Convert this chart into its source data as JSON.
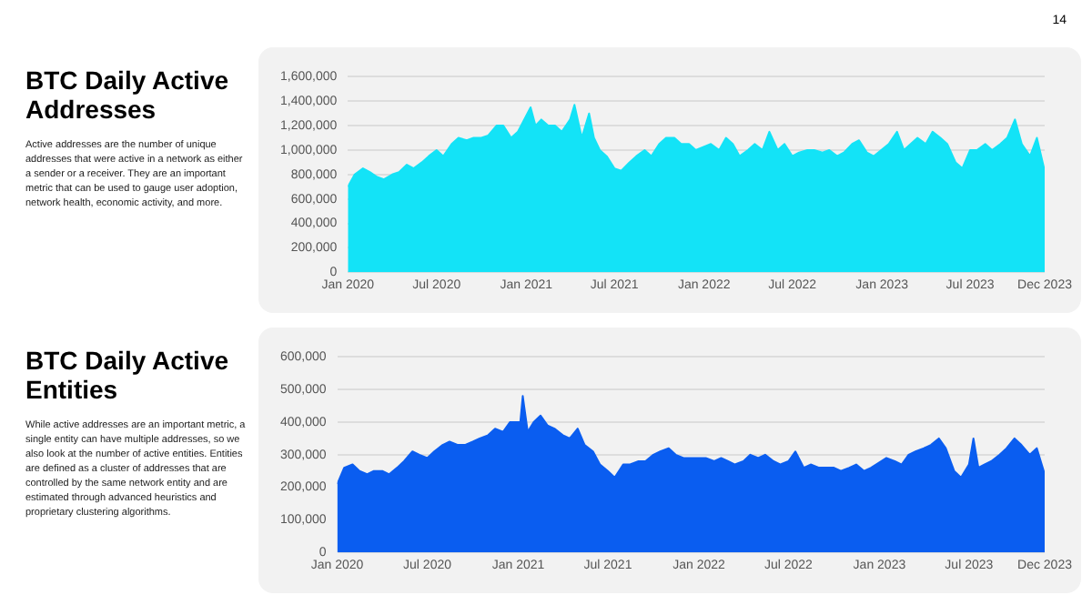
{
  "chart_data": [
    {
      "type": "area",
      "title": "BTC Daily Active Addresses",
      "subtitle": "Active addresses are the number of unique addresses that were active in a network as either a sender or a receiver. They are an important metric that can be used to gauge user adoption, network health, economic activity, and more.",
      "annotations": [
        "14"
      ],
      "color": "#13e3f7",
      "grid": "y",
      "x": [
        "2020-01-01",
        "2020-01-15",
        "2020-02-01",
        "2020-02-15",
        "2020-03-01",
        "2020-03-15",
        "2020-04-01",
        "2020-04-15",
        "2020-05-01",
        "2020-05-15",
        "2020-06-01",
        "2020-06-15",
        "2020-07-01",
        "2020-07-15",
        "2020-08-01",
        "2020-08-15",
        "2020-09-01",
        "2020-09-15",
        "2020-10-01",
        "2020-10-15",
        "2020-11-01",
        "2020-11-15",
        "2020-12-01",
        "2020-12-15",
        "2021-01-10",
        "2021-01-20",
        "2021-02-01",
        "2021-02-15",
        "2021-03-01",
        "2021-03-15",
        "2021-04-01",
        "2021-04-10",
        "2021-04-25",
        "2021-05-10",
        "2021-05-20",
        "2021-06-01",
        "2021-06-15",
        "2021-07-01",
        "2021-07-15",
        "2021-08-01",
        "2021-08-15",
        "2021-09-01",
        "2021-09-15",
        "2021-10-01",
        "2021-10-15",
        "2021-11-01",
        "2021-11-15",
        "2021-12-01",
        "2021-12-15",
        "2022-01-15",
        "2022-02-01",
        "2022-02-15",
        "2022-03-01",
        "2022-03-15",
        "2022-04-01",
        "2022-04-15",
        "2022-05-01",
        "2022-05-15",
        "2022-06-01",
        "2022-06-15",
        "2022-07-01",
        "2022-07-15",
        "2022-08-01",
        "2022-08-15",
        "2022-09-01",
        "2022-09-15",
        "2022-10-01",
        "2022-10-15",
        "2022-11-01",
        "2022-11-15",
        "2022-12-01",
        "2022-12-15",
        "2023-01-15",
        "2023-02-01",
        "2023-02-15",
        "2023-03-01",
        "2023-03-15",
        "2023-04-01",
        "2023-04-15",
        "2023-05-01",
        "2023-05-15",
        "2023-06-01",
        "2023-06-15",
        "2023-07-01",
        "2023-07-15",
        "2023-08-01",
        "2023-08-15",
        "2023-09-01",
        "2023-09-15",
        "2023-10-01",
        "2023-10-15",
        "2023-11-01",
        "2023-11-15",
        "2023-12-01"
      ],
      "values": [
        700000,
        800000,
        850000,
        820000,
        780000,
        760000,
        800000,
        820000,
        880000,
        850000,
        900000,
        950000,
        1000000,
        950000,
        1050000,
        1100000,
        1080000,
        1100000,
        1100000,
        1120000,
        1200000,
        1200000,
        1100000,
        1150000,
        1350000,
        1200000,
        1250000,
        1200000,
        1200000,
        1150000,
        1250000,
        1370000,
        1100000,
        1300000,
        1100000,
        1000000,
        950000,
        850000,
        830000,
        900000,
        950000,
        1000000,
        950000,
        1050000,
        1100000,
        1100000,
        1050000,
        1050000,
        1000000,
        1050000,
        1000000,
        1100000,
        1050000,
        950000,
        1000000,
        1050000,
        1000000,
        1150000,
        1000000,
        1050000,
        950000,
        980000,
        1000000,
        1000000,
        980000,
        1000000,
        950000,
        980000,
        1050000,
        1080000,
        980000,
        950000,
        1050000,
        1150000,
        1000000,
        1050000,
        1100000,
        1050000,
        1150000,
        1100000,
        1050000,
        900000,
        850000,
        1000000,
        1000000,
        1050000,
        1000000,
        1050000,
        1100000,
        1250000,
        1050000,
        950000,
        1100000,
        830000
      ],
      "xlim": [
        "2020-01-01",
        "2023-12-01"
      ],
      "xticks": [
        {
          "value": "2020-01",
          "label": "Jan 2020"
        },
        {
          "value": "2020-07",
          "label": "Jul 2020"
        },
        {
          "value": "2021-01",
          "label": "Jan 2021"
        },
        {
          "value": "2021-07",
          "label": "Jul 2021"
        },
        {
          "value": "2022-01",
          "label": "Jan 2022"
        },
        {
          "value": "2022-07",
          "label": "Jul 2022"
        },
        {
          "value": "2023-01",
          "label": "Jan 2023"
        },
        {
          "value": "2023-07",
          "label": "Jul 2023"
        },
        {
          "value": "2023-12",
          "label": "Dec 2023"
        }
      ],
      "ylim": [
        0,
        1600000
      ],
      "yticks": [
        0,
        {
          "value": 200000,
          "label": "200,000"
        },
        {
          "value": 400000,
          "label": "400,000"
        },
        {
          "value": 600000,
          "label": "600,000"
        },
        {
          "value": 800000,
          "label": "800,000"
        },
        {
          "value": 1000000,
          "label": "1,000,000"
        },
        {
          "value": 1200000,
          "label": "1,200,000"
        },
        {
          "value": 1400000,
          "label": "1,400,000"
        },
        {
          "value": 1600000,
          "label": "1,600,000"
        }
      ]
    },
    {
      "type": "area",
      "title": "BTC Daily Active Entities",
      "subtitle": "While active addresses are an important metric, a single entity can have multiple addresses, so we also look at the number of active entities. Entities are defined as a cluster of addresses that are controlled by the same network entity and are estimated through advanced heuristics and proprietary clustering algorithms.",
      "color": "#0a5df0",
      "grid": "y",
      "x": [
        "2020-01-01",
        "2020-01-15",
        "2020-02-01",
        "2020-02-15",
        "2020-03-01",
        "2020-03-15",
        "2020-04-01",
        "2020-04-15",
        "2020-05-01",
        "2020-05-15",
        "2020-06-01",
        "2020-06-15",
        "2020-07-01",
        "2020-07-15",
        "2020-08-01",
        "2020-08-15",
        "2020-09-01",
        "2020-09-15",
        "2020-10-01",
        "2020-10-15",
        "2020-11-01",
        "2020-11-15",
        "2020-12-01",
        "2020-12-15",
        "2021-01-05",
        "2021-01-10",
        "2021-01-20",
        "2021-02-01",
        "2021-02-15",
        "2021-03-01",
        "2021-03-15",
        "2021-04-01",
        "2021-04-15",
        "2021-05-01",
        "2021-05-15",
        "2021-06-01",
        "2021-06-15",
        "2021-07-01",
        "2021-07-15",
        "2021-08-01",
        "2021-08-15",
        "2021-09-01",
        "2021-09-15",
        "2021-10-01",
        "2021-10-15",
        "2021-11-01",
        "2021-11-15",
        "2021-12-01",
        "2021-12-15",
        "2022-01-15",
        "2022-02-01",
        "2022-02-15",
        "2022-03-01",
        "2022-03-15",
        "2022-04-01",
        "2022-04-15",
        "2022-05-01",
        "2022-05-15",
        "2022-06-01",
        "2022-06-15",
        "2022-07-01",
        "2022-07-15",
        "2022-08-01",
        "2022-08-15",
        "2022-09-01",
        "2022-09-15",
        "2022-10-01",
        "2022-10-15",
        "2022-11-01",
        "2022-11-15",
        "2022-12-01",
        "2022-12-15",
        "2023-01-15",
        "2023-02-01",
        "2023-02-15",
        "2023-03-01",
        "2023-03-15",
        "2023-04-01",
        "2023-04-15",
        "2023-05-01",
        "2023-05-15",
        "2023-06-01",
        "2023-06-15",
        "2023-07-01",
        "2023-07-10",
        "2023-07-20",
        "2023-08-01",
        "2023-08-15",
        "2023-09-01",
        "2023-09-15",
        "2023-10-01",
        "2023-10-15",
        "2023-11-01",
        "2023-11-15",
        "2023-12-01"
      ],
      "values": [
        210000,
        260000,
        270000,
        250000,
        240000,
        250000,
        250000,
        240000,
        260000,
        280000,
        310000,
        300000,
        290000,
        310000,
        330000,
        340000,
        330000,
        330000,
        340000,
        350000,
        360000,
        380000,
        370000,
        400000,
        400000,
        480000,
        370000,
        400000,
        420000,
        390000,
        380000,
        360000,
        350000,
        380000,
        330000,
        310000,
        270000,
        250000,
        230000,
        270000,
        270000,
        280000,
        280000,
        300000,
        310000,
        320000,
        300000,
        290000,
        290000,
        290000,
        280000,
        290000,
        280000,
        270000,
        280000,
        300000,
        290000,
        300000,
        280000,
        270000,
        280000,
        310000,
        260000,
        270000,
        260000,
        260000,
        260000,
        250000,
        260000,
        270000,
        250000,
        260000,
        290000,
        280000,
        270000,
        300000,
        310000,
        320000,
        330000,
        350000,
        320000,
        250000,
        230000,
        270000,
        350000,
        260000,
        270000,
        280000,
        300000,
        320000,
        350000,
        330000,
        300000,
        320000,
        240000
      ],
      "xlim": [
        "2020-01-01",
        "2023-12-01"
      ],
      "xticks": [
        {
          "value": "2020-01",
          "label": "Jan 2020"
        },
        {
          "value": "2020-07",
          "label": "Jul 2020"
        },
        {
          "value": "2021-01",
          "label": "Jan 2021"
        },
        {
          "value": "2021-07",
          "label": "Jul 2021"
        },
        {
          "value": "2022-01",
          "label": "Jan 2022"
        },
        {
          "value": "2022-07",
          "label": "Jul 2022"
        },
        {
          "value": "2023-01",
          "label": "Jan 2023"
        },
        {
          "value": "2023-07",
          "label": "Jul 2023"
        },
        {
          "value": "2023-12",
          "label": "Dec 2023"
        }
      ],
      "ylim": [
        0,
        600000
      ],
      "yticks": [
        0,
        {
          "value": 100000,
          "label": "100,000"
        },
        {
          "value": 200000,
          "label": "200,000"
        },
        {
          "value": 300000,
          "label": "300,000"
        },
        {
          "value": 400000,
          "label": "400,000"
        },
        {
          "value": 500000,
          "label": "500,000"
        },
        {
          "value": 600000,
          "label": "600,000"
        }
      ]
    }
  ]
}
